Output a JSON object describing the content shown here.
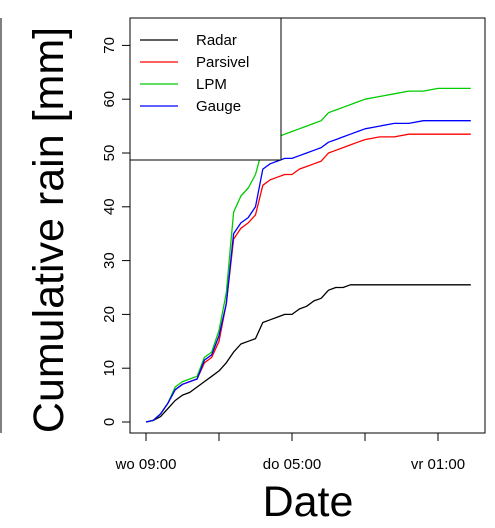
{
  "chart_data": {
    "type": "line",
    "title": "",
    "xlabel": "Date",
    "ylabel": "Cumulative rain [mm]",
    "xlim": [
      0,
      45
    ],
    "ylim": [
      -1,
      71
    ],
    "x_unit": "hours",
    "xticks": [
      {
        "x": 0,
        "label": "wo 09:00"
      },
      {
        "x": 10,
        "label": ""
      },
      {
        "x": 20,
        "label": "do 05:00"
      },
      {
        "x": 30,
        "label": ""
      },
      {
        "x": 40,
        "label": "vr 01:00"
      }
    ],
    "yticks": [
      0,
      10,
      20,
      30,
      40,
      50,
      60,
      70
    ],
    "legend_position": "top-left",
    "grid": false,
    "series": [
      {
        "name": "Radar",
        "color": "#000000",
        "x": [
          0,
          1,
          2,
          3,
          4,
          5,
          6,
          7,
          8,
          9,
          10,
          11,
          12,
          13,
          14,
          15,
          16,
          17,
          18,
          19,
          20,
          21,
          22,
          23,
          24,
          25,
          26,
          27,
          28,
          29,
          30,
          32,
          34,
          36,
          38,
          40,
          42,
          44.5
        ],
        "y": [
          0,
          0.3,
          1.0,
          2.5,
          4.0,
          5.0,
          5.5,
          6.5,
          7.5,
          8.5,
          9.5,
          11.0,
          13.0,
          14.5,
          15.0,
          15.5,
          18.5,
          19.0,
          19.5,
          20.0,
          20.0,
          21.0,
          21.5,
          22.5,
          23.0,
          24.5,
          25.0,
          25.0,
          25.5,
          25.5,
          25.5,
          25.5,
          25.5,
          25.5,
          25.5,
          25.5,
          25.5,
          25.5
        ]
      },
      {
        "name": "Parsivel",
        "color": "#ff0000",
        "x": [
          0,
          1,
          2,
          3,
          4,
          5,
          6,
          7,
          8,
          9,
          10,
          11,
          12,
          13,
          14,
          15,
          16,
          17,
          18,
          19,
          20,
          21,
          22,
          23,
          24,
          25,
          26,
          27,
          28,
          29,
          30,
          32,
          34,
          36,
          38,
          40,
          42,
          44.5
        ],
        "y": [
          0,
          0.3,
          1.5,
          3.5,
          6.0,
          7.0,
          7.5,
          8.0,
          11.0,
          12.0,
          15.0,
          22.0,
          34.0,
          36.0,
          37.0,
          38.5,
          44.0,
          45.0,
          45.5,
          46.0,
          46.0,
          47.0,
          47.5,
          48.0,
          48.5,
          50.0,
          50.5,
          51.0,
          51.5,
          52.0,
          52.5,
          53.0,
          53.0,
          53.5,
          53.5,
          53.5,
          53.5,
          53.5
        ]
      },
      {
        "name": "LPM",
        "color": "#00cc00",
        "x": [
          0,
          1,
          2,
          3,
          4,
          5,
          6,
          7,
          8,
          9,
          10,
          11,
          12,
          13,
          14,
          15,
          16,
          17,
          18,
          19,
          20,
          21,
          22,
          23,
          24,
          25,
          26,
          27,
          28,
          29,
          30,
          32,
          34,
          36,
          38,
          40,
          42,
          44.5
        ],
        "y": [
          0,
          0.3,
          1.5,
          3.5,
          6.5,
          7.5,
          8.0,
          8.5,
          12.0,
          13.0,
          17.0,
          24.0,
          39.0,
          42.0,
          43.5,
          46.0,
          51.0,
          52.5,
          53.0,
          53.5,
          54.0,
          54.5,
          55.0,
          55.5,
          56.0,
          57.5,
          58.0,
          58.5,
          59.0,
          59.5,
          60.0,
          60.5,
          61.0,
          61.5,
          61.5,
          62.0,
          62.0,
          62.0
        ]
      },
      {
        "name": "Gauge",
        "color": "#0000ff",
        "x": [
          0,
          1,
          2,
          3,
          4,
          5,
          6,
          7,
          8,
          9,
          10,
          11,
          12,
          13,
          14,
          15,
          16,
          17,
          18,
          19,
          20,
          21,
          22,
          23,
          24,
          25,
          26,
          27,
          28,
          29,
          30,
          32,
          34,
          36,
          38,
          40,
          42,
          44.5
        ],
        "y": [
          0,
          0.3,
          1.5,
          3.5,
          6.0,
          7.0,
          7.5,
          8.0,
          11.5,
          12.5,
          16.0,
          22.0,
          35.0,
          37.0,
          38.0,
          40.0,
          47.0,
          48.0,
          48.5,
          49.0,
          49.0,
          49.5,
          50.0,
          50.5,
          51.0,
          52.0,
          52.5,
          53.0,
          53.5,
          54.0,
          54.5,
          55.0,
          55.5,
          55.5,
          56.0,
          56.0,
          56.0,
          56.0
        ]
      }
    ]
  }
}
